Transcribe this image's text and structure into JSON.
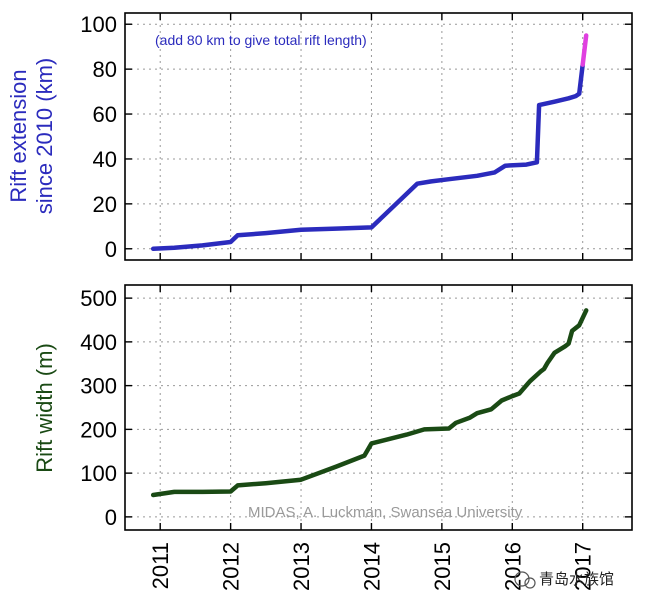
{
  "chart_data": [
    {
      "type": "line",
      "ylabel_lines": [
        "Rift extension",
        "since 2010 (km)"
      ],
      "annotation": "(add 80 km to give total rift length)",
      "xlim": [
        2010.5,
        2017.7
      ],
      "ylim": [
        -5,
        105
      ],
      "yticks": [
        0,
        20,
        40,
        60,
        80,
        100
      ],
      "grid": true,
      "series": [
        {
          "color": "#2b2bbd",
          "points": [
            [
              2010.9,
              0
            ],
            [
              2011.2,
              0.5
            ],
            [
              2011.6,
              1.5
            ],
            [
              2012.0,
              3
            ],
            [
              2012.1,
              6
            ],
            [
              2012.5,
              7
            ],
            [
              2013.0,
              8.5
            ],
            [
              2013.5,
              9
            ],
            [
              2014.0,
              9.5
            ],
            [
              2014.65,
              29
            ],
            [
              2014.85,
              30
            ],
            [
              2015.1,
              31
            ],
            [
              2015.5,
              32.5
            ],
            [
              2015.75,
              34
            ],
            [
              2015.9,
              37
            ],
            [
              2016.2,
              37.5
            ],
            [
              2016.35,
              38.5
            ],
            [
              2016.38,
              64
            ],
            [
              2016.6,
              65.5
            ],
            [
              2016.8,
              67
            ],
            [
              2016.9,
              68
            ],
            [
              2016.95,
              69
            ],
            [
              2017.0,
              82
            ]
          ]
        },
        {
          "color": "#e040e0",
          "points": [
            [
              2017.0,
              82
            ],
            [
              2017.05,
              95
            ]
          ]
        }
      ]
    },
    {
      "type": "line",
      "ylabel": "Rift width (m)",
      "xlim": [
        2010.5,
        2017.7
      ],
      "ylim": [
        -30,
        530
      ],
      "yticks": [
        0,
        100,
        200,
        300,
        400,
        500
      ],
      "xticks": [
        "2011",
        "2012",
        "2013",
        "2014",
        "2015",
        "2016",
        "2017"
      ],
      "grid": true,
      "credit": "MIDAS, A. Luckman, Swansea University",
      "series": [
        {
          "color": "#1a4a14",
          "points": [
            [
              2010.9,
              50
            ],
            [
              2011.2,
              57
            ],
            [
              2011.6,
              57
            ],
            [
              2012.0,
              58
            ],
            [
              2012.1,
              72
            ],
            [
              2012.5,
              77
            ],
            [
              2013.0,
              85
            ],
            [
              2013.5,
              115
            ],
            [
              2013.9,
              140
            ],
            [
              2014.0,
              168
            ],
            [
              2014.5,
              188
            ],
            [
              2014.75,
              200
            ],
            [
              2015.1,
              202
            ],
            [
              2015.2,
              215
            ],
            [
              2015.4,
              227
            ],
            [
              2015.5,
              237
            ],
            [
              2015.7,
              246
            ],
            [
              2015.85,
              266
            ],
            [
              2016.0,
              276
            ],
            [
              2016.1,
              282
            ],
            [
              2016.25,
              310
            ],
            [
              2016.4,
              332
            ],
            [
              2016.45,
              338
            ],
            [
              2016.5,
              352
            ],
            [
              2016.6,
              375
            ],
            [
              2016.75,
              390
            ],
            [
              2016.8,
              396
            ],
            [
              2016.85,
              425
            ],
            [
              2016.95,
              438
            ],
            [
              2017.05,
              472
            ]
          ]
        }
      ]
    }
  ],
  "watermark": "青岛水族馆"
}
